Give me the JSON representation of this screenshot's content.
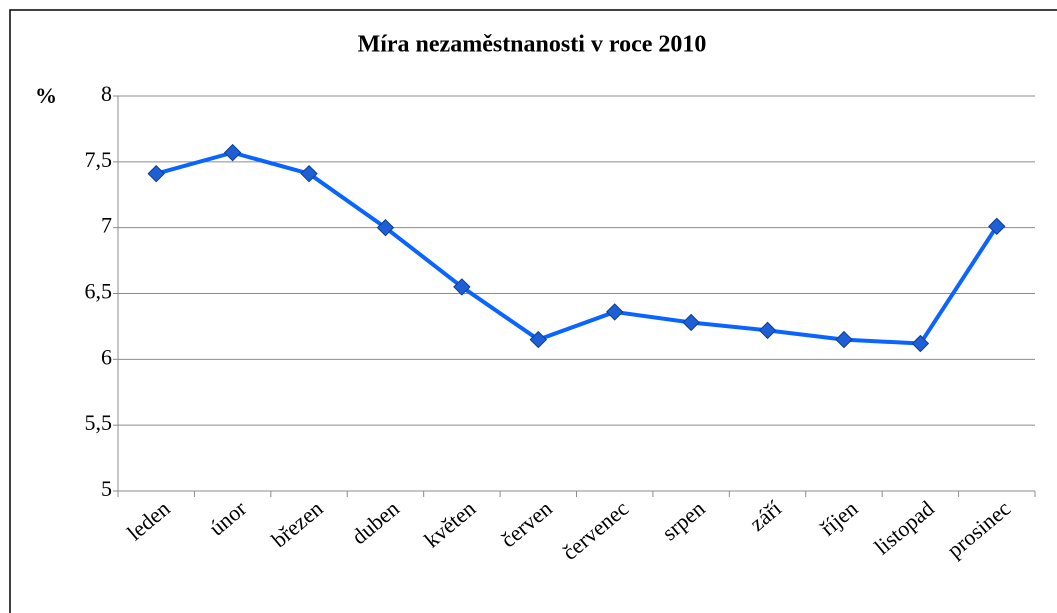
{
  "chart_data": {
    "type": "line",
    "title": "Míra nezaměstnanosti v roce 2010",
    "y_label": "%",
    "categories": [
      "leden",
      "únor",
      "březen",
      "duben",
      "květen",
      "červen",
      "červenec",
      "srpen",
      "září",
      "říjen",
      "listopad",
      "prosinec"
    ],
    "values": [
      7.41,
      7.57,
      7.41,
      7.0,
      6.55,
      6.15,
      6.36,
      6.28,
      6.22,
      6.15,
      6.12,
      7.01
    ],
    "color": "#0a64ff",
    "marker_color": "#1f5fd6",
    "ylim": [
      5,
      8
    ],
    "yticks": [
      5,
      {
        "value": 5.5,
        "label": "5,5"
      },
      6,
      {
        "value": 6.5,
        "label": "6,5"
      },
      7,
      {
        "value": 7.5,
        "label": "7,5"
      },
      8
    ],
    "grid": true
  }
}
